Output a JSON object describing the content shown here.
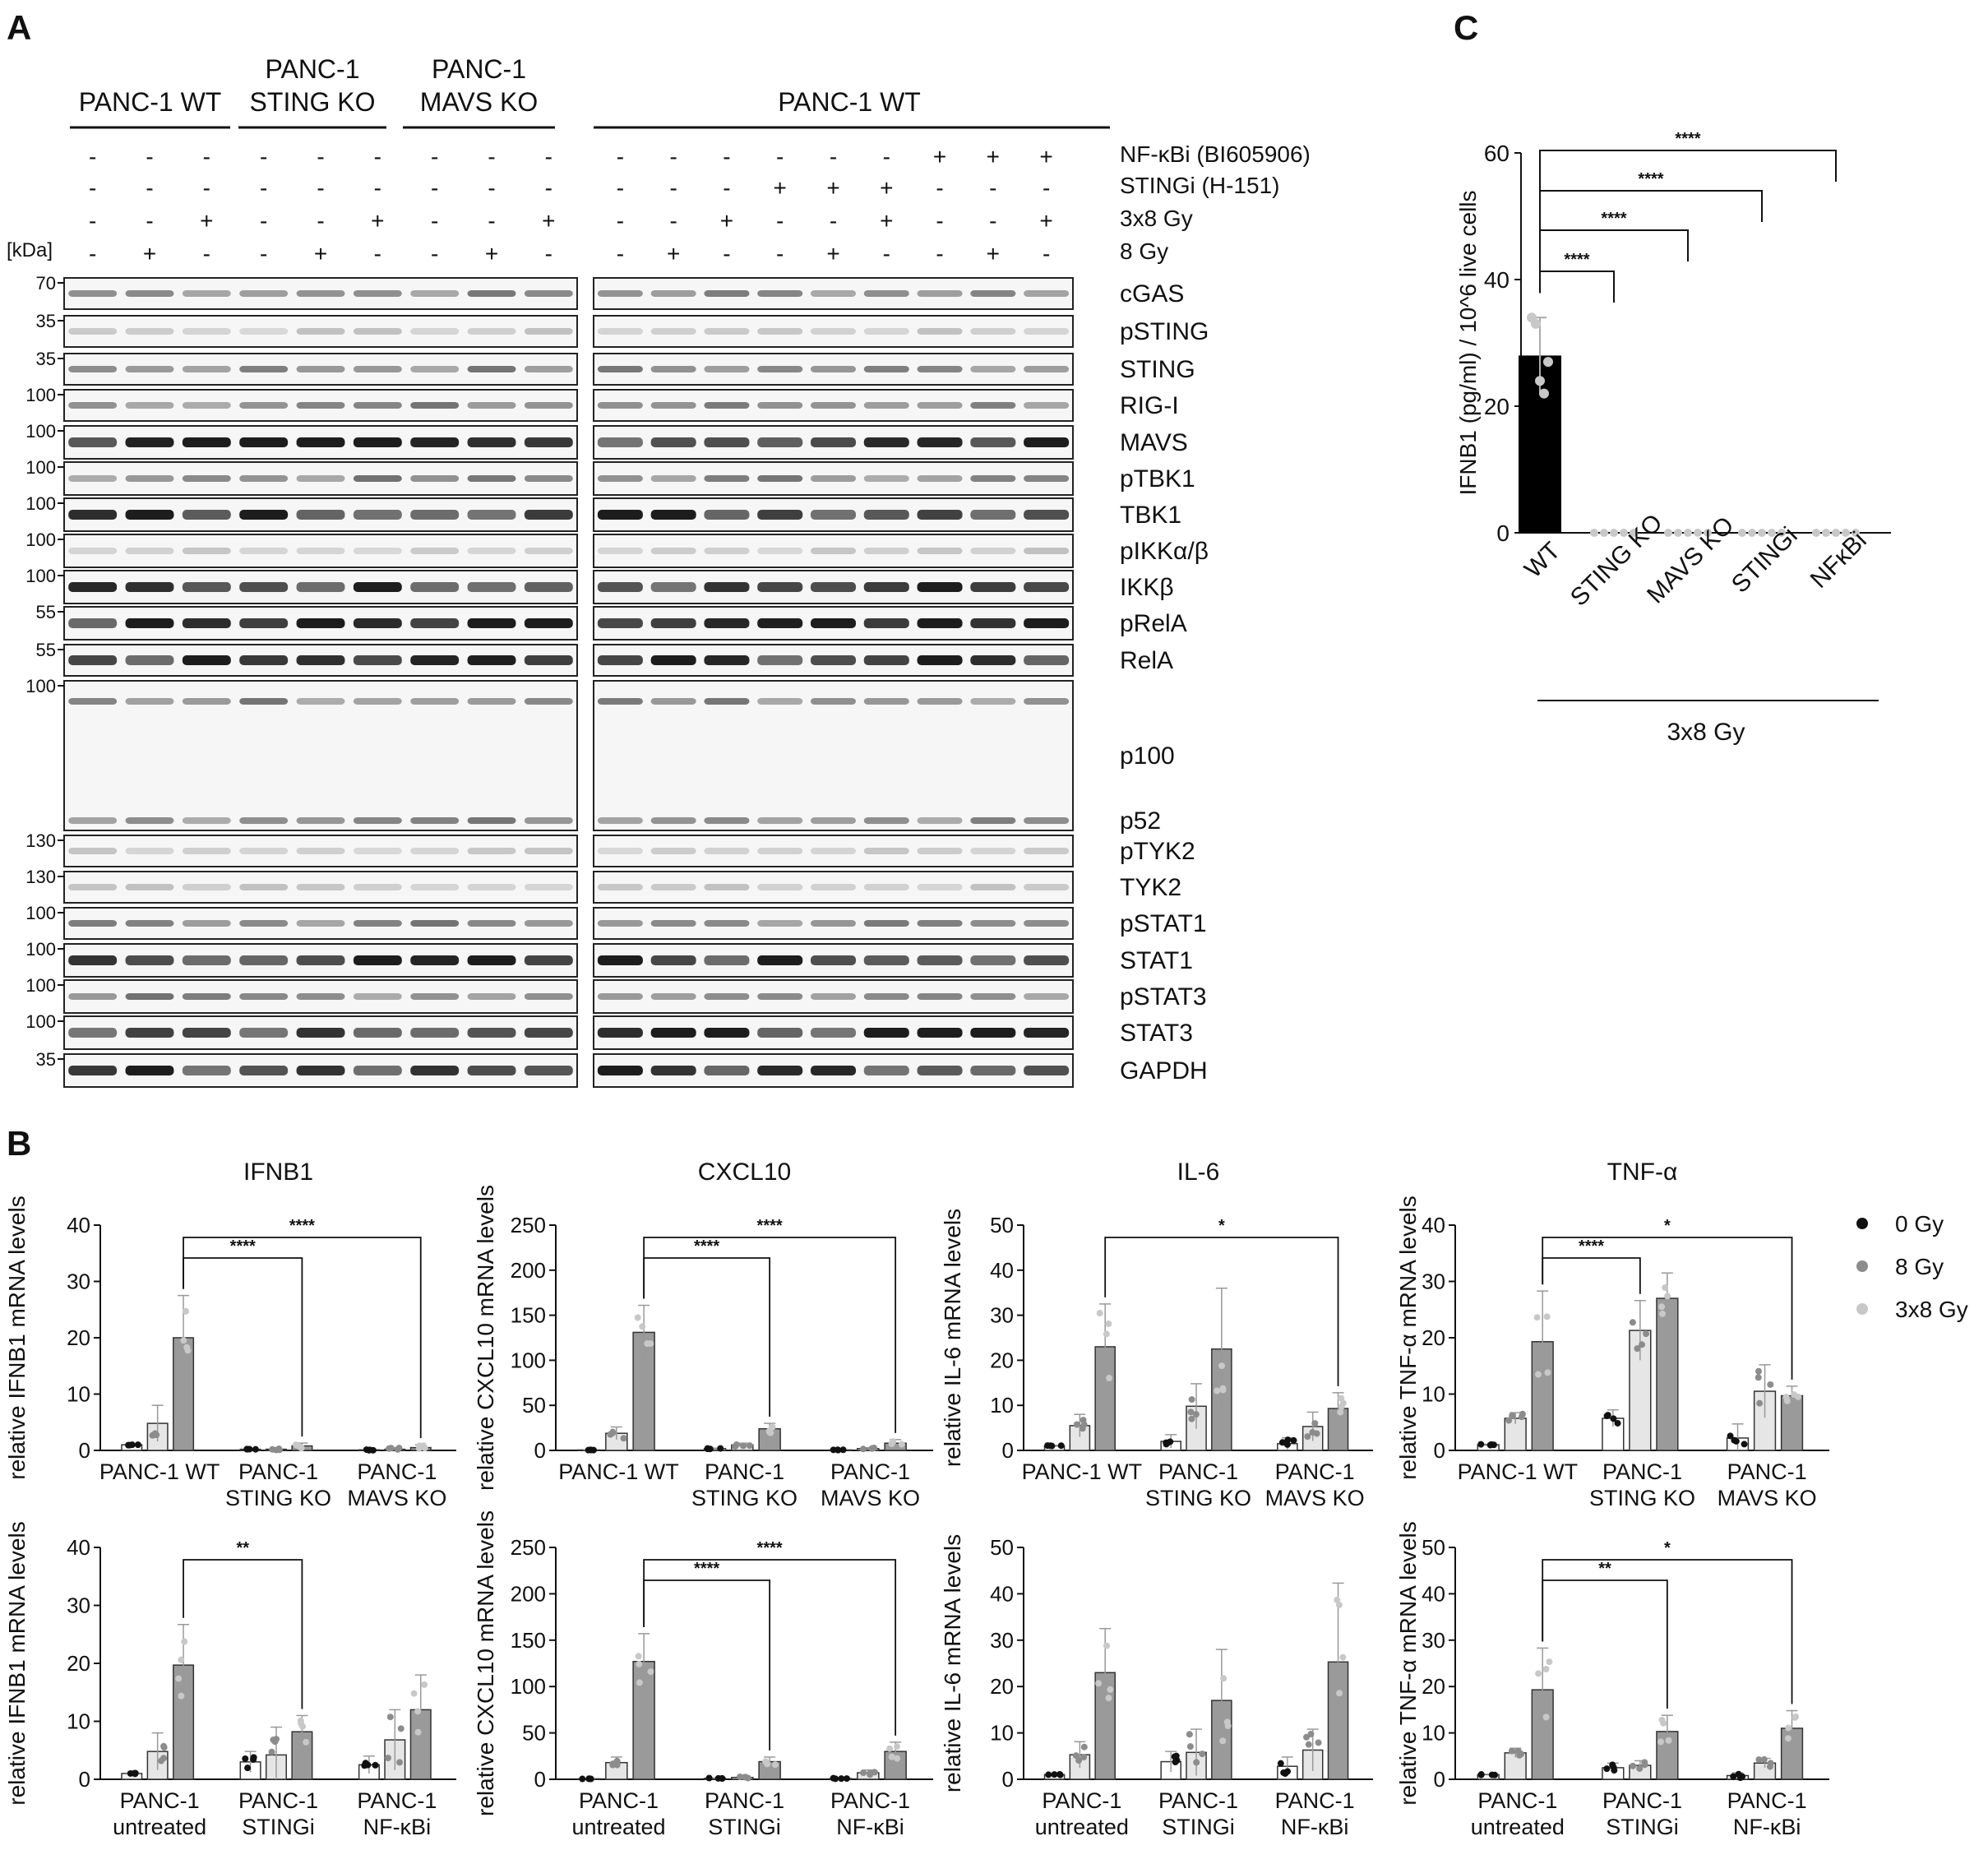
{
  "panel_letters": {
    "a": "A",
    "b": "B",
    "c": "C"
  },
  "panel_a": {
    "headers_left": [
      {
        "lines": [
          "PANC-1 WT"
        ]
      },
      {
        "lines": [
          "PANC-1",
          "STING KO"
        ]
      },
      {
        "lines": [
          "PANC-1",
          "MAVS KO"
        ]
      }
    ],
    "header_right": "PANC-1 WT",
    "kda_label": "[kDa]",
    "conditions": [
      {
        "label": "NF-κBi (BI605906)",
        "left": [
          "-",
          "-",
          "-",
          "-",
          "-",
          "-",
          "-",
          "-",
          "-"
        ],
        "right": [
          "-",
          "-",
          "-",
          "-",
          "-",
          "-",
          "+",
          "+",
          "+"
        ]
      },
      {
        "label": "STINGi (H-151)",
        "left": [
          "-",
          "-",
          "-",
          "-",
          "-",
          "-",
          "-",
          "-",
          "-"
        ],
        "right": [
          "-",
          "-",
          "-",
          "+",
          "+",
          "+",
          "-",
          "-",
          "-"
        ]
      },
      {
        "label": "3x8 Gy",
        "left": [
          "-",
          "-",
          "+",
          "-",
          "-",
          "+",
          "-",
          "-",
          "+"
        ],
        "right": [
          "-",
          "-",
          "+",
          "-",
          "-",
          "+",
          "-",
          "-",
          "+"
        ]
      },
      {
        "label": "8 Gy",
        "left": [
          "-",
          "+",
          "-",
          "-",
          "+",
          "-",
          "-",
          "+",
          "-"
        ],
        "right": [
          "-",
          "+",
          "-",
          "-",
          "+",
          "-",
          "-",
          "+",
          "-"
        ]
      }
    ],
    "blots": [
      {
        "label": "cGAS",
        "kda": "70"
      },
      {
        "label": "pSTING",
        "kda": "35"
      },
      {
        "label": "STING",
        "kda": "35"
      },
      {
        "label": "RIG-I",
        "kda": "100"
      },
      {
        "label": "MAVS",
        "kda": "100"
      },
      {
        "label": "pTBK1",
        "kda": "100"
      },
      {
        "label": "TBK1",
        "kda": "100"
      },
      {
        "label": "pIKKα/β",
        "kda": "100"
      },
      {
        "label": "IKKβ",
        "kda": "100"
      },
      {
        "label": "pRelA",
        "kda": "55"
      },
      {
        "label": "RelA",
        "kda": "55"
      },
      {
        "label": "p100",
        "kda": "100",
        "label2": "p52"
      },
      {
        "label": "pTYK2",
        "kda": "130"
      },
      {
        "label": "TYK2",
        "kda": "130"
      },
      {
        "label": "pSTAT1",
        "kda": "100"
      },
      {
        "label": "STAT1",
        "kda": "100"
      },
      {
        "label": "pSTAT3",
        "kda": "100"
      },
      {
        "label": "STAT3",
        "kda": "100"
      },
      {
        "label": "GAPDH",
        "kda": "35"
      }
    ]
  },
  "legend": [
    {
      "label": "0 Gy",
      "color": "#111111"
    },
    {
      "label": "8 Gy",
      "color": "#8c8c8c"
    },
    {
      "label": "3x8 Gy",
      "color": "#c8c8c8"
    }
  ],
  "colors": {
    "gy0": "#ffffff",
    "gy8": "#e6e6e6",
    "gy3x8": "#9a9a9a",
    "black_bar": "#000000"
  },
  "chart_data": [
    {
      "id": "ifnb1_ko",
      "type": "bar",
      "title": "IFNB1",
      "ylabel": "relative IFNB1 mRNA levels",
      "ylim": [
        0,
        40
      ],
      "yticks": [
        0,
        10,
        20,
        30,
        40
      ],
      "groups": [
        "PANC-1 WT",
        "PANC-1\nSTING KO",
        "PANC-1\nMAVS KO"
      ],
      "series": [
        {
          "name": "0 Gy",
          "values": [
            1.0,
            0.2,
            0.1
          ]
        },
        {
          "name": "8 Gy",
          "values": [
            4.8,
            0.2,
            0.2
          ]
        },
        {
          "name": "3x8 Gy",
          "values": [
            20.0,
            0.8,
            0.5
          ]
        }
      ],
      "errors": [
        [
          0.1,
          0.1,
          0.1
        ],
        [
          3.2,
          0.2,
          0.3
        ],
        [
          7.5,
          0.5,
          0.5
        ]
      ],
      "significance": [
        {
          "from": [
            0,
            2
          ],
          "to": [
            1,
            2
          ],
          "label": "****"
        },
        {
          "from": [
            0,
            2
          ],
          "to": [
            2,
            2
          ],
          "label": "****"
        }
      ]
    },
    {
      "id": "cxcl10_ko",
      "type": "bar",
      "title": "CXCL10",
      "ylabel": "relative CXCL10 mRNA levels",
      "ylim": [
        0,
        250
      ],
      "yticks": [
        0,
        50,
        100,
        150,
        200,
        250
      ],
      "groups": [
        "PANC-1 WT",
        "PANC-1\nSTING KO",
        "PANC-1\nMAVS KO"
      ],
      "series": [
        {
          "name": "0 Gy",
          "values": [
            0.5,
            2.0,
            0.5
          ]
        },
        {
          "name": "8 Gy",
          "values": [
            19,
            6,
            2
          ]
        },
        {
          "name": "3x8 Gy",
          "values": [
            131,
            24,
            8
          ]
        }
      ],
      "errors": [
        [
          0.3,
          0.5,
          0.3
        ],
        [
          7,
          2,
          1
        ],
        [
          30,
          6,
          4
        ]
      ],
      "significance": [
        {
          "from": [
            0,
            2
          ],
          "to": [
            1,
            2
          ],
          "label": "****"
        },
        {
          "from": [
            0,
            2
          ],
          "to": [
            2,
            2
          ],
          "label": "****"
        }
      ]
    },
    {
      "id": "il6_ko",
      "type": "bar",
      "title": "IL-6",
      "ylabel": "relative IL-6 mRNA levels",
      "ylim": [
        0,
        50
      ],
      "yticks": [
        0,
        10,
        20,
        30,
        40,
        50
      ],
      "groups": [
        "PANC-1 WT",
        "PANC-1\nSTING KO",
        "PANC-1\nMAVS KO"
      ],
      "series": [
        {
          "name": "0 Gy",
          "values": [
            1.0,
            2.0,
            1.5
          ]
        },
        {
          "name": "8 Gy",
          "values": [
            5.5,
            9.8,
            5.3
          ]
        },
        {
          "name": "3x8 Gy",
          "values": [
            23,
            22.5,
            9.3
          ]
        }
      ],
      "errors": [
        [
          0.1,
          1.5,
          1.3
        ],
        [
          2.5,
          5,
          3.2
        ],
        [
          9.5,
          13.5,
          3.5
        ]
      ],
      "significance": [
        {
          "from": [
            0,
            2
          ],
          "to": [
            2,
            2
          ],
          "label": "*"
        }
      ]
    },
    {
      "id": "tnfa_ko",
      "type": "bar",
      "title": "TNF-α",
      "ylabel": "relative TNF-α mRNA levels",
      "ylim": [
        0,
        40
      ],
      "yticks": [
        0,
        10,
        20,
        30,
        40
      ],
      "groups": [
        "PANC-1 WT",
        "PANC-1\nSTING KO",
        "PANC-1\nMAVS KO"
      ],
      "series": [
        {
          "name": "0 Gy",
          "values": [
            1.0,
            5.7,
            2.2
          ]
        },
        {
          "name": "8 Gy",
          "values": [
            5.7,
            21.3,
            10.5
          ]
        },
        {
          "name": "3x8 Gy",
          "values": [
            19.3,
            27.0,
            9.7
          ]
        }
      ],
      "errors": [
        [
          0.1,
          1.5,
          2.5
        ],
        [
          1,
          5.3,
          4.7
        ],
        [
          9,
          4.5,
          1.7
        ]
      ],
      "significance": [
        {
          "from": [
            0,
            2
          ],
          "to": [
            1,
            1
          ],
          "label": "****"
        },
        {
          "from": [
            0,
            2
          ],
          "to": [
            2,
            2
          ],
          "label": "*"
        }
      ]
    },
    {
      "id": "ifnb1_inh",
      "type": "bar",
      "title": "",
      "ylabel": "relative IFNB1 mRNA levels",
      "ylim": [
        0,
        40
      ],
      "yticks": [
        0,
        10,
        20,
        30,
        40
      ],
      "groups": [
        "PANC-1\nuntreated",
        "PANC-1\nSTINGi",
        "PANC-1\nNF-κBi"
      ],
      "series": [
        {
          "name": "0 Gy",
          "values": [
            1.0,
            3.0,
            2.5
          ]
        },
        {
          "name": "8 Gy",
          "values": [
            4.8,
            4.2,
            6.8
          ]
        },
        {
          "name": "3x8 Gy",
          "values": [
            19.7,
            8.2,
            12.0
          ]
        }
      ],
      "errors": [
        [
          0.1,
          1.8,
          1.5
        ],
        [
          3.2,
          4.8,
          5.2
        ],
        [
          7,
          2.8,
          6
        ]
      ],
      "significance": [
        {
          "from": [
            0,
            2
          ],
          "to": [
            1,
            2
          ],
          "label": "**"
        }
      ]
    },
    {
      "id": "cxcl10_inh",
      "type": "bar",
      "title": "",
      "ylabel": "relative CXCL10 mRNA levels",
      "ylim": [
        0,
        250
      ],
      "yticks": [
        0,
        50,
        100,
        150,
        200,
        250
      ],
      "groups": [
        "PANC-1\nuntreated",
        "PANC-1\nSTINGi",
        "PANC-1\nNF-κBi"
      ],
      "series": [
        {
          "name": "0 Gy",
          "values": [
            0.5,
            1.0,
            0.8
          ]
        },
        {
          "name": "8 Gy",
          "values": [
            18,
            2,
            7
          ]
        },
        {
          "name": "3x8 Gy",
          "values": [
            127,
            19,
            30
          ]
        }
      ],
      "errors": [
        [
          0.3,
          0.5,
          0.5
        ],
        [
          6,
          1,
          3
        ],
        [
          30,
          5,
          10
        ]
      ],
      "significance": [
        {
          "from": [
            0,
            2
          ],
          "to": [
            1,
            2
          ],
          "label": "****"
        },
        {
          "from": [
            0,
            2
          ],
          "to": [
            2,
            2
          ],
          "label": "****"
        }
      ]
    },
    {
      "id": "il6_inh",
      "type": "bar",
      "title": "",
      "ylabel": "relative IL-6 mRNA levels",
      "ylim": [
        0,
        50
      ],
      "yticks": [
        0,
        10,
        20,
        30,
        40,
        50
      ],
      "groups": [
        "PANC-1\nuntreated",
        "PANC-1\nSTINGi",
        "PANC-1\nNF-κBi"
      ],
      "series": [
        {
          "name": "0 Gy",
          "values": [
            1.0,
            3.8,
            2.8
          ]
        },
        {
          "name": "8 Gy",
          "values": [
            5.3,
            5.8,
            6.3
          ]
        },
        {
          "name": "3x8 Gy",
          "values": [
            23,
            17,
            25.3
          ]
        }
      ],
      "errors": [
        [
          0.1,
          2.2,
          2
        ],
        [
          2.8,
          5,
          4.5
        ],
        [
          9.5,
          11,
          17
        ]
      ],
      "significance": []
    },
    {
      "id": "tnfa_inh",
      "type": "bar",
      "title": "",
      "ylabel": "relative TNF-α mRNA levels",
      "ylim": [
        0,
        50
      ],
      "yticks": [
        0,
        10,
        20,
        30,
        40,
        50
      ],
      "groups": [
        "PANC-1\nuntreated",
        "PANC-1\nSTINGi",
        "PANC-1\nNF-κBi"
      ],
      "series": [
        {
          "name": "0 Gy",
          "values": [
            1.0,
            2.5,
            0.8
          ]
        },
        {
          "name": "8 Gy",
          "values": [
            5.7,
            3.0,
            3.5
          ]
        },
        {
          "name": "3x8 Gy",
          "values": [
            19.3,
            10.3,
            11.0
          ]
        }
      ],
      "errors": [
        [
          0.1,
          1,
          0.6
        ],
        [
          1,
          1,
          1
        ],
        [
          9,
          3.5,
          3.8
        ]
      ],
      "significance": [
        {
          "from": [
            0,
            2
          ],
          "to": [
            1,
            2
          ],
          "label": "**"
        },
        {
          "from": [
            0,
            2
          ],
          "to": [
            2,
            2
          ],
          "label": "*"
        }
      ]
    },
    {
      "id": "ifnb1_elisa",
      "type": "bar",
      "title": "",
      "ylabel": "IFNB1 (pg/ml) / 10^6 live cells",
      "ylim": [
        0,
        60
      ],
      "yticks": [
        0,
        20,
        40,
        60
      ],
      "categories": [
        "WT",
        "STING KO",
        "MAVS KO",
        "STINGi",
        "NFκBi"
      ],
      "values": [
        28,
        0,
        0,
        0,
        0
      ],
      "errors": [
        6,
        0,
        0,
        0,
        0
      ],
      "xgroup_label": "3x8 Gy",
      "significance": [
        {
          "from": 0,
          "to": 1,
          "label": "****"
        },
        {
          "from": 0,
          "to": 2,
          "label": "****"
        },
        {
          "from": 0,
          "to": 3,
          "label": "****"
        },
        {
          "from": 0,
          "to": 4,
          "label": "****"
        }
      ]
    }
  ]
}
